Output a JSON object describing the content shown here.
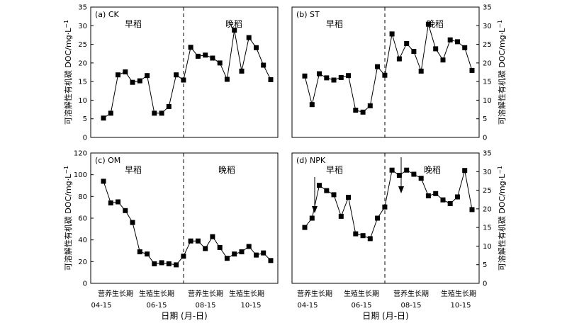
{
  "chart_data": [
    {
      "type": "line",
      "panel_label": "(a) CK",
      "season_labels": [
        "早稻",
        "晚稻"
      ],
      "ylabel": "可溶解性有机碳 DOC/mg·L",
      "ylabel_sup": "−1",
      "ylim": [
        0,
        35
      ],
      "yticks": [
        0,
        5,
        10,
        15,
        20,
        25,
        30,
        35
      ],
      "yaxis_side": "left",
      "values": [
        5.2,
        6.5,
        16.8,
        17.6,
        14.8,
        15.2,
        16.6,
        6.5,
        6.5,
        8.3,
        16.8,
        15.4,
        24.2,
        21.8,
        22.1,
        21.3,
        20.0,
        15.6,
        28.8,
        17.8,
        26.8,
        24.1,
        19.4,
        15.5
      ]
    },
    {
      "type": "line",
      "panel_label": "(b) ST",
      "season_labels": [
        "早稻",
        "晚稻"
      ],
      "ylabel": "可溶解性有机碳 DOC/mg·L",
      "ylabel_sup": "−1",
      "ylim": [
        0,
        35
      ],
      "yticks": [
        0,
        5,
        10,
        15,
        20,
        25,
        30,
        35
      ],
      "yaxis_side": "right",
      "values": [
        16.5,
        8.8,
        17.1,
        16.0,
        15.4,
        16.1,
        16.6,
        7.3,
        6.8,
        8.5,
        19.0,
        16.7,
        27.8,
        21.1,
        25.2,
        23.1,
        17.8,
        30.4,
        23.8,
        20.8,
        26.2,
        25.7,
        24.1,
        18.0
      ]
    },
    {
      "type": "line",
      "panel_label": "(c) OM",
      "season_labels": [
        "早稻",
        "晚稻"
      ],
      "ylabel": "可溶解性有机碳 DOC/mg·L",
      "ylabel_sup": "−1",
      "ylim": [
        0,
        120
      ],
      "yticks": [
        0,
        20,
        40,
        60,
        80,
        100,
        120
      ],
      "yaxis_side": "left",
      "values": [
        94,
        74,
        75,
        67,
        56,
        29,
        27,
        18,
        19,
        18,
        17,
        25,
        39,
        39,
        32,
        43,
        33,
        23,
        27,
        29,
        34,
        26,
        28,
        21
      ]
    },
    {
      "type": "line",
      "panel_label": "(d) NPK",
      "season_labels": [
        "早稻",
        "晚稻"
      ],
      "ylabel": "可溶解性有机碳 DOC/mg·L",
      "ylabel_sup": "−1",
      "ylim": [
        0,
        35
      ],
      "yticks": [
        0,
        5,
        10,
        15,
        20,
        25,
        30,
        35
      ],
      "yaxis_side": "right",
      "values": [
        15.0,
        17.5,
        26.3,
        24.9,
        23.8,
        18.0,
        23.1,
        13.3,
        12.8,
        12.0,
        17.5,
        20.5,
        30.4,
        29.0,
        30.4,
        29.3,
        28.2,
        23.5,
        24.1,
        22.4,
        21.4,
        23.2,
        30.3,
        19.8
      ]
    }
  ],
  "x_axis": {
    "phase_labels": [
      "营养生长期",
      "生殖生长期",
      "营养生长期",
      "生殖生长期"
    ],
    "date_labels": [
      "04-15",
      "06-15",
      "08-15",
      "10-15"
    ],
    "xlabel": "日期 (月-日)"
  }
}
